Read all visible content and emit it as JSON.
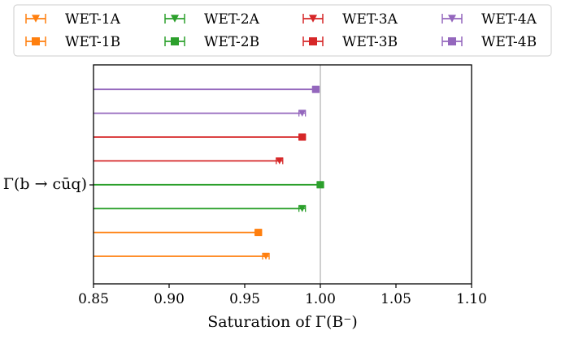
{
  "chart_data": {
    "type": "scatter",
    "xlabel": "Saturation of Γ(B⁻)",
    "ylabel": "",
    "xlim": [
      0.85,
      1.1
    ],
    "xticks": [
      "0.85",
      "0.90",
      "0.95",
      "1.00",
      "1.05",
      "1.10"
    ],
    "ycategory": "Γ(b → cūq)",
    "reference_line": 1.0,
    "grid": false,
    "legend_position": "top",
    "series": [
      {
        "name": "WET-1A",
        "value": 0.964,
        "color": "#ff7f0e",
        "marker": "triangle-down"
      },
      {
        "name": "WET-1B",
        "value": 0.959,
        "color": "#ff7f0e",
        "marker": "square"
      },
      {
        "name": "WET-2A",
        "value": 0.988,
        "color": "#2ca02c",
        "marker": "triangle-down"
      },
      {
        "name": "WET-2B",
        "value": 1.0,
        "color": "#2ca02c",
        "marker": "square"
      },
      {
        "name": "WET-3A",
        "value": 0.973,
        "color": "#d62728",
        "marker": "triangle-down"
      },
      {
        "name": "WET-3B",
        "value": 0.988,
        "color": "#d62728",
        "marker": "square"
      },
      {
        "name": "WET-4A",
        "value": 0.988,
        "color": "#9467bd",
        "marker": "triangle-down"
      },
      {
        "name": "WET-4B",
        "value": 0.997,
        "color": "#9467bd",
        "marker": "square"
      }
    ]
  }
}
